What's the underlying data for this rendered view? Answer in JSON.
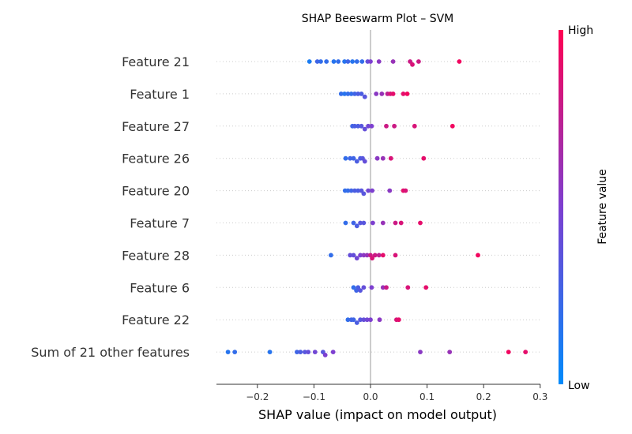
{
  "chart_data": {
    "type": "scatter",
    "subtype": "shap-beeswarm",
    "title": "SHAP Beeswarm Plot – SVM",
    "xlabel": "SHAP value (impact on model output)",
    "xlim": [
      -0.28,
      0.3
    ],
    "xticks": [
      -0.2,
      -0.1,
      0.0,
      0.1,
      0.2,
      0.3
    ],
    "xtick_labels": [
      "−0.2",
      "−0.1",
      "0.0",
      "0.1",
      "0.2",
      "0.3"
    ],
    "colorbar": {
      "label": "Feature value",
      "high_label": "High",
      "low_label": "Low",
      "low_color": "#008bfb",
      "high_color": "#ff0052"
    },
    "zero_line": true,
    "row_gridlines": "dotted",
    "features": [
      {
        "name": "Feature 21",
        "points": [
          [
            -0.108,
            0.1
          ],
          [
            -0.094,
            0.25
          ],
          [
            -0.088,
            0.2
          ],
          [
            -0.078,
            0.2
          ],
          [
            -0.065,
            0.15
          ],
          [
            -0.057,
            0.2
          ],
          [
            -0.046,
            0.15
          ],
          [
            -0.04,
            0.25
          ],
          [
            -0.032,
            0.15
          ],
          [
            -0.024,
            0.2
          ],
          [
            -0.015,
            0.2
          ],
          [
            -0.005,
            0.4
          ],
          [
            0.0,
            0.5
          ],
          [
            0.015,
            0.55
          ],
          [
            0.04,
            0.6
          ],
          [
            0.07,
            0.8
          ],
          [
            0.074,
            0.85
          ],
          [
            0.085,
            0.8
          ],
          [
            0.157,
            0.95
          ]
        ]
      },
      {
        "name": "Feature 1",
        "points": [
          [
            -0.052,
            0.2
          ],
          [
            -0.046,
            0.15
          ],
          [
            -0.04,
            0.2
          ],
          [
            -0.034,
            0.2
          ],
          [
            -0.028,
            0.25
          ],
          [
            -0.022,
            0.3
          ],
          [
            -0.016,
            0.3
          ],
          [
            -0.01,
            0.35
          ],
          [
            0.01,
            0.55
          ],
          [
            0.02,
            0.6
          ],
          [
            0.03,
            0.75
          ],
          [
            0.035,
            0.85
          ],
          [
            0.04,
            0.9
          ],
          [
            0.058,
            0.9
          ],
          [
            0.065,
            0.95
          ]
        ]
      },
      {
        "name": "Feature 27",
        "points": [
          [
            -0.032,
            0.25
          ],
          [
            -0.028,
            0.3
          ],
          [
            -0.022,
            0.3
          ],
          [
            -0.016,
            0.35
          ],
          [
            -0.01,
            0.4
          ],
          [
            -0.004,
            0.45
          ],
          [
            0.002,
            0.5
          ],
          [
            0.028,
            0.8
          ],
          [
            0.042,
            0.8
          ],
          [
            0.078,
            0.85
          ],
          [
            0.145,
            0.95
          ]
        ]
      },
      {
        "name": "Feature 26",
        "points": [
          [
            -0.044,
            0.2
          ],
          [
            -0.036,
            0.25
          ],
          [
            -0.03,
            0.25
          ],
          [
            -0.024,
            0.3
          ],
          [
            -0.018,
            0.3
          ],
          [
            -0.014,
            0.35
          ],
          [
            -0.01,
            0.4
          ],
          [
            0.012,
            0.55
          ],
          [
            0.022,
            0.6
          ],
          [
            0.036,
            0.85
          ],
          [
            0.094,
            0.9
          ]
        ]
      },
      {
        "name": "Feature 20",
        "points": [
          [
            -0.045,
            0.2
          ],
          [
            -0.04,
            0.2
          ],
          [
            -0.034,
            0.25
          ],
          [
            -0.028,
            0.3
          ],
          [
            -0.022,
            0.3
          ],
          [
            -0.016,
            0.35
          ],
          [
            -0.012,
            0.35
          ],
          [
            -0.004,
            0.45
          ],
          [
            0.003,
            0.5
          ],
          [
            0.034,
            0.55
          ],
          [
            0.058,
            0.9
          ],
          [
            0.062,
            0.85
          ]
        ]
      },
      {
        "name": "Feature 7",
        "points": [
          [
            -0.044,
            0.2
          ],
          [
            -0.03,
            0.25
          ],
          [
            -0.024,
            0.3
          ],
          [
            -0.018,
            0.35
          ],
          [
            -0.012,
            0.35
          ],
          [
            0.004,
            0.5
          ],
          [
            0.022,
            0.6
          ],
          [
            0.044,
            0.8
          ],
          [
            0.054,
            0.85
          ],
          [
            0.088,
            0.9
          ]
        ]
      },
      {
        "name": "Feature 28",
        "points": [
          [
            -0.07,
            0.2
          ],
          [
            -0.036,
            0.4
          ],
          [
            -0.03,
            0.4
          ],
          [
            -0.024,
            0.45
          ],
          [
            -0.018,
            0.5
          ],
          [
            -0.012,
            0.55
          ],
          [
            -0.006,
            0.6
          ],
          [
            0.0,
            0.8
          ],
          [
            0.003,
            0.85
          ],
          [
            0.008,
            0.8
          ],
          [
            0.015,
            0.75
          ],
          [
            0.022,
            0.9
          ],
          [
            0.044,
            0.85
          ],
          [
            0.19,
            0.95
          ]
        ]
      },
      {
        "name": "Feature 6",
        "points": [
          [
            -0.03,
            0.2
          ],
          [
            -0.025,
            0.25
          ],
          [
            -0.022,
            0.3
          ],
          [
            -0.018,
            0.35
          ],
          [
            -0.012,
            0.4
          ],
          [
            0.002,
            0.5
          ],
          [
            0.022,
            0.6
          ],
          [
            0.028,
            0.8
          ],
          [
            0.066,
            0.85
          ],
          [
            0.098,
            0.9
          ]
        ]
      },
      {
        "name": "Feature 22",
        "points": [
          [
            -0.04,
            0.2
          ],
          [
            -0.034,
            0.25
          ],
          [
            -0.03,
            0.25
          ],
          [
            -0.024,
            0.3
          ],
          [
            -0.018,
            0.35
          ],
          [
            -0.012,
            0.4
          ],
          [
            -0.006,
            0.45
          ],
          [
            0.0,
            0.5
          ],
          [
            0.016,
            0.55
          ],
          [
            0.046,
            0.85
          ],
          [
            0.05,
            0.9
          ]
        ]
      },
      {
        "name": "Sum of 21 other features",
        "points": [
          [
            -0.252,
            0.15
          ],
          [
            -0.24,
            0.2
          ],
          [
            -0.178,
            0.15
          ],
          [
            -0.13,
            0.25
          ],
          [
            -0.124,
            0.3
          ],
          [
            -0.116,
            0.35
          ],
          [
            -0.11,
            0.4
          ],
          [
            -0.084,
            0.35
          ],
          [
            -0.098,
            0.45
          ],
          [
            -0.08,
            0.5
          ],
          [
            -0.066,
            0.5
          ],
          [
            0.088,
            0.55
          ],
          [
            0.14,
            0.6
          ],
          [
            0.244,
            0.95
          ],
          [
            0.274,
            0.9
          ]
        ]
      }
    ]
  }
}
